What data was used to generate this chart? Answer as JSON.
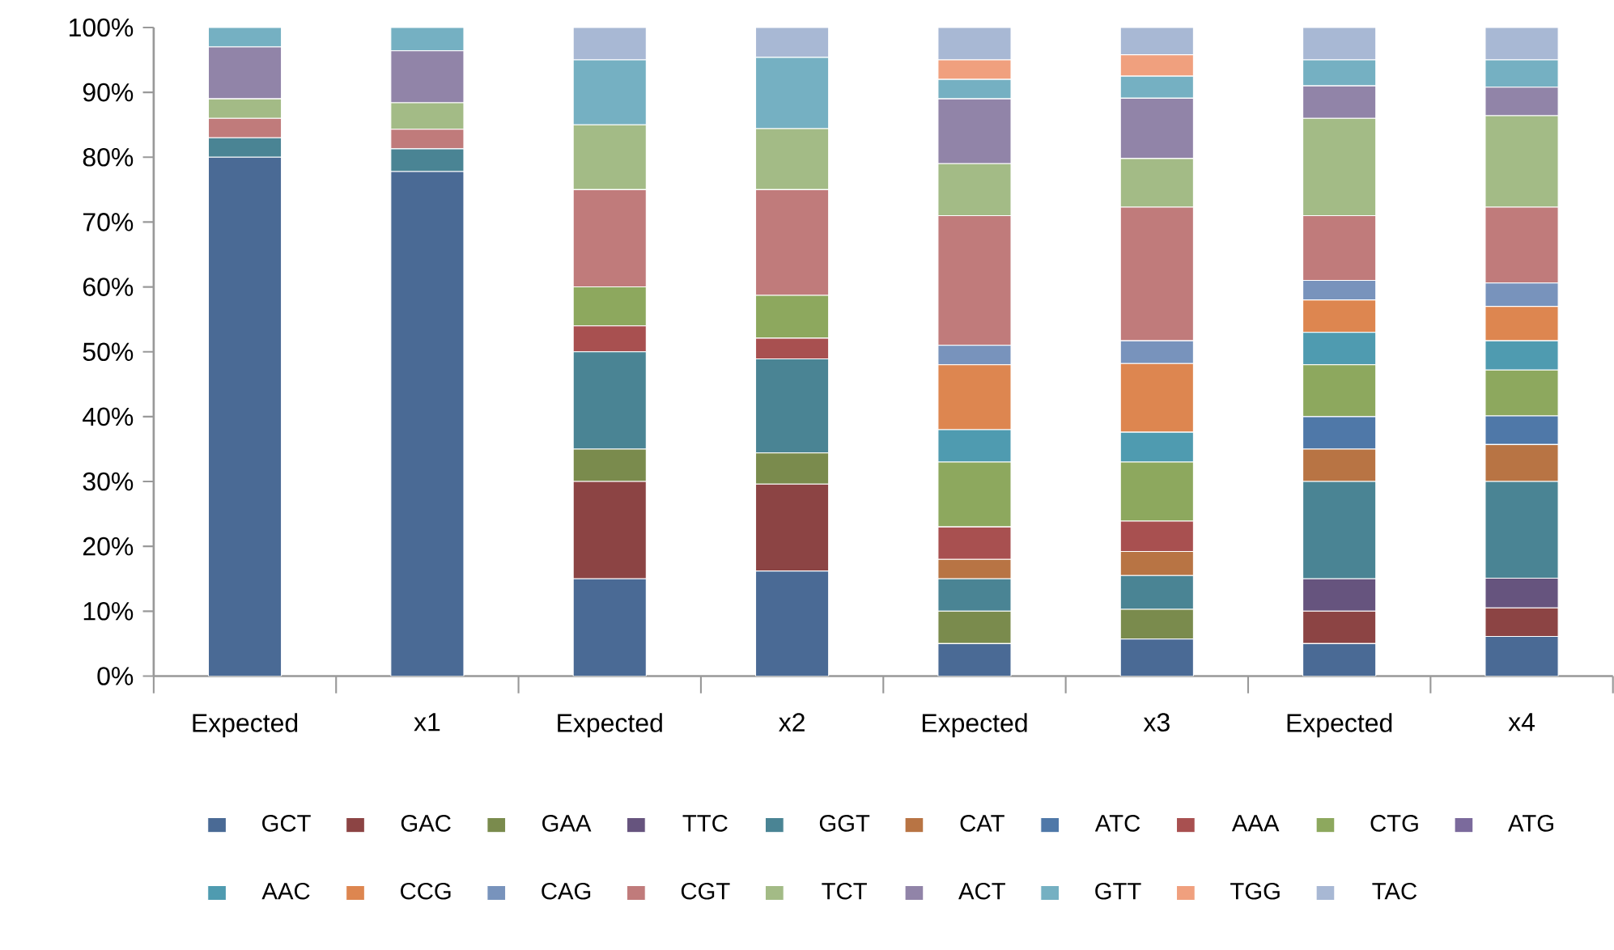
{
  "chart_data": {
    "type": "bar",
    "stacked": true,
    "legend": "bottom",
    "grid": false,
    "categories": [
      "Expected",
      "x1",
      "Expected",
      "x2",
      "Expected",
      "x3",
      "Expected",
      "x4"
    ],
    "ylim": [
      0,
      100
    ],
    "yticks": [
      {
        "value": 0,
        "label": "0%"
      },
      {
        "value": 10,
        "label": "10%"
      },
      {
        "value": 20,
        "label": "20%"
      },
      {
        "value": 30,
        "label": "30%"
      },
      {
        "value": 40,
        "label": "40%"
      },
      {
        "value": 50,
        "label": "50%"
      },
      {
        "value": 60,
        "label": "60%"
      },
      {
        "value": 70,
        "label": "70%"
      },
      {
        "value": 80,
        "label": "80%"
      },
      {
        "value": 90,
        "label": "90%"
      },
      {
        "value": 100,
        "label": "100%"
      }
    ],
    "series": [
      {
        "name": "GCT",
        "color": "#4a6a95",
        "values": [
          80,
          77.8,
          15,
          16.2,
          5,
          5.7,
          5,
          6.1
        ]
      },
      {
        "name": "GAC",
        "color": "#8c4444",
        "values": [
          0,
          0,
          15,
          13.4,
          0,
          0,
          5,
          4.4
        ]
      },
      {
        "name": "GAA",
        "color": "#7a8b4d",
        "values": [
          0,
          0,
          5,
          4.8,
          5,
          4.6,
          0,
          0
        ]
      },
      {
        "name": "TTC",
        "color": "#66547e",
        "values": [
          0,
          0,
          0,
          0,
          0,
          0,
          5,
          4.6
        ]
      },
      {
        "name": "GGT",
        "color": "#4a8494",
        "values": [
          3,
          3.5,
          15,
          14.5,
          5,
          5.2,
          15,
          14.9
        ]
      },
      {
        "name": "CAT",
        "color": "#b87444",
        "values": [
          0,
          0,
          0,
          0,
          3,
          3.7,
          5,
          5.7
        ]
      },
      {
        "name": "ATC",
        "color": "#4f78a8",
        "values": [
          0,
          0,
          0,
          0,
          0,
          0,
          5,
          4.4
        ]
      },
      {
        "name": "AAA",
        "color": "#a85050",
        "values": [
          0,
          0,
          4,
          3.2,
          5,
          4.7,
          0,
          0
        ]
      },
      {
        "name": "CTG",
        "color": "#8da85e",
        "values": [
          0,
          0,
          6,
          6.6,
          10,
          9.1,
          8,
          7.1
        ]
      },
      {
        "name": "ATG",
        "color": "#7b6a9c",
        "values": [
          0,
          0,
          0,
          0,
          0,
          0,
          0,
          0
        ]
      },
      {
        "name": "AAC",
        "color": "#4f9bb0",
        "values": [
          0,
          0,
          0,
          0,
          5,
          4.6,
          5,
          4.5
        ]
      },
      {
        "name": "CCG",
        "color": "#dd8650",
        "values": [
          0,
          0,
          0,
          0,
          10,
          10.6,
          5,
          5.3
        ]
      },
      {
        "name": "CAG",
        "color": "#7893bc",
        "values": [
          0,
          0,
          0,
          0,
          3,
          3.5,
          3,
          3.6
        ]
      },
      {
        "name": "CGT",
        "color": "#c07b7b",
        "values": [
          3,
          3,
          15,
          16.3,
          20,
          20.6,
          10,
          11.7
        ]
      },
      {
        "name": "TCT",
        "color": "#a3bb86",
        "values": [
          3,
          4.1,
          10,
          9.4,
          8,
          7.5,
          15,
          14.1
        ]
      },
      {
        "name": "ACT",
        "color": "#9184a8",
        "values": [
          8,
          8,
          0,
          0,
          10,
          9.3,
          5,
          4.4
        ]
      },
      {
        "name": "GTT",
        "color": "#75b0c2",
        "values": [
          3,
          3.6,
          10,
          11,
          3,
          3.4,
          4,
          4.2
        ]
      },
      {
        "name": "TGG",
        "color": "#f0a07e",
        "values": [
          0,
          0,
          0,
          0,
          3,
          3.3,
          0,
          0
        ]
      },
      {
        "name": "TAC",
        "color": "#a8b8d4",
        "values": [
          0,
          0,
          5,
          4.6,
          5,
          4.2,
          5,
          5
        ]
      }
    ]
  }
}
